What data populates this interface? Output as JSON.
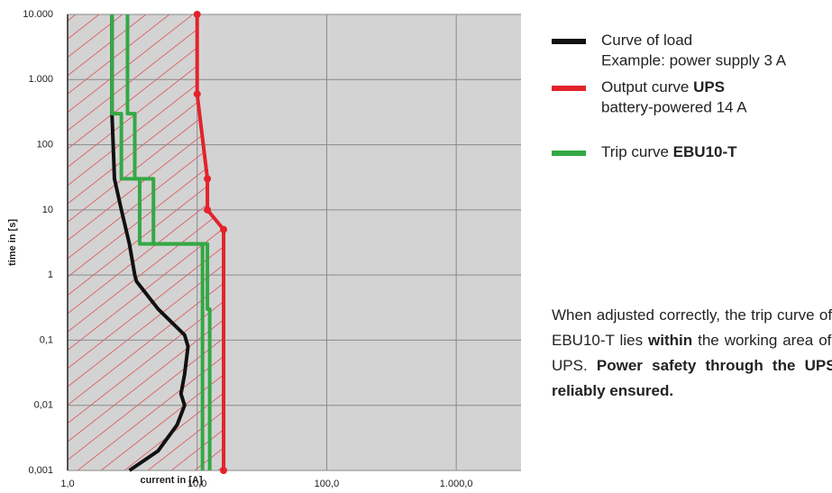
{
  "chart_data": {
    "type": "line",
    "xlabel": "current in [A]",
    "ylabel": "time in [s]",
    "xscale": "log",
    "yscale": "log",
    "xlim": [
      1,
      3162
    ],
    "ylim": [
      0.001,
      10000
    ],
    "xticks": [
      {
        "value": 1,
        "label": "1,0"
      },
      {
        "value": 10,
        "label": "10,0"
      },
      {
        "value": 100,
        "label": "100,0"
      },
      {
        "value": 1000,
        "label": "1.000,0"
      }
    ],
    "yticks": [
      {
        "value": 10000,
        "label": "10.000"
      },
      {
        "value": 1000,
        "label": "1.000"
      },
      100,
      10,
      1,
      {
        "value": 0.1,
        "label": "0,1"
      },
      {
        "value": 0.01,
        "label": "0,01"
      },
      {
        "value": 0.001,
        "label": "0,001"
      }
    ],
    "grid": true,
    "hatch_series": 1,
    "series": [
      {
        "name": "Curve of load",
        "color": "#111111",
        "x": [
          2.2,
          2.2,
          2.3,
          2.6,
          3,
          3.3,
          3.4,
          5,
          8,
          8.5,
          8,
          7.5,
          8,
          7,
          5,
          3
        ],
        "values": [
          10000,
          300,
          30,
          10,
          3,
          1,
          0.8,
          0.3,
          0.12,
          0.08,
          0.03,
          0.015,
          0.01,
          0.005,
          0.002,
          0.001
        ]
      },
      {
        "name": "Output curve UPS",
        "color": "#e3232b",
        "markers": true,
        "x": [
          10,
          10,
          12,
          12,
          16,
          16
        ],
        "values": [
          10000,
          600,
          30,
          10,
          5,
          0.001
        ]
      },
      {
        "name": "Trip curve EBU10-T",
        "color": "#34a845",
        "x": [
          2.2,
          2.2,
          2.6,
          2.6,
          3.6,
          3.6,
          11,
          11
        ],
        "values": [
          10000,
          300,
          300,
          30,
          30,
          3,
          3,
          0.001
        ]
      },
      {
        "color": "#34a845",
        "x": [
          2.9,
          2.9,
          3.3,
          3.3,
          4.6,
          4.6,
          12,
          12,
          12.5,
          12.5
        ],
        "values": [
          10000,
          300,
          300,
          30,
          30,
          3,
          3,
          0.3,
          0.3,
          0.001
        ]
      }
    ],
    "legend": [
      {
        "series": 0,
        "parts": [
          {
            "text": "Curve of load"
          }
        ],
        "sub": "Example: power supply 3 A"
      },
      {
        "series": 1,
        "parts": [
          {
            "text": "Output curve "
          },
          {
            "text": "UPS",
            "bold": true
          }
        ],
        "sub": "battery-powered 14 A"
      },
      {
        "series": 2,
        "parts": [
          {
            "text": "Trip curve "
          },
          {
            "text": "EBU10-T",
            "bold": true
          }
        ]
      }
    ],
    "annotation": [
      {
        "text": "When adjusted correctly, the trip curve of the EBU10-T lies "
      },
      {
        "text": "within",
        "bold": true
      },
      {
        "text": " the working area of the UPS. "
      },
      {
        "text": "Power safety through the UPS is reliably ensured.",
        "bold": true
      }
    ]
  }
}
